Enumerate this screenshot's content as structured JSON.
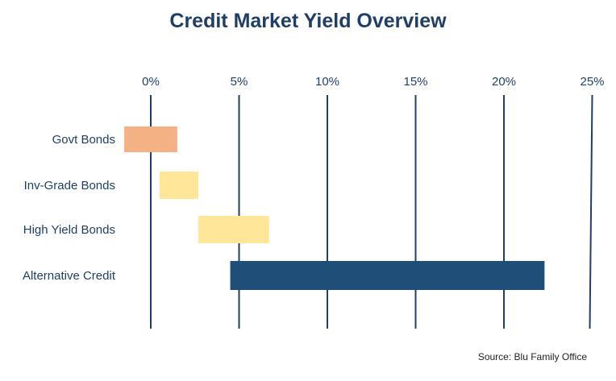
{
  "chart_data": {
    "type": "range-bar",
    "title": "Credit Market Yield Overview",
    "source": "Source: Blu Family Office",
    "x_ticks": [
      0,
      5,
      10,
      15,
      20,
      25
    ],
    "x_tick_labels": [
      "0%",
      "5%",
      "10%",
      "15%",
      "20%",
      "25%"
    ],
    "xlim": [
      0,
      25
    ],
    "grid": true,
    "categories": [
      "Govt Bonds",
      "Inv-Grade Bonds",
      "High Yield Bonds",
      "Alternative Credit"
    ],
    "ranges": [
      {
        "category": "Govt Bonds",
        "low": -1.5,
        "high": 1.5,
        "color": "#f4b183"
      },
      {
        "category": "Inv-Grade Bonds",
        "low": 0.5,
        "high": 2.7,
        "color": "#ffe699"
      },
      {
        "category": "High Yield Bonds",
        "low": 2.7,
        "high": 6.7,
        "color": "#ffe699"
      },
      {
        "category": "Alternative Credit",
        "low": 4.5,
        "high": 22.3,
        "color": "#1f4e79"
      }
    ],
    "colors": {
      "text": "#1f3f66",
      "axis": "#1f3f66"
    }
  }
}
